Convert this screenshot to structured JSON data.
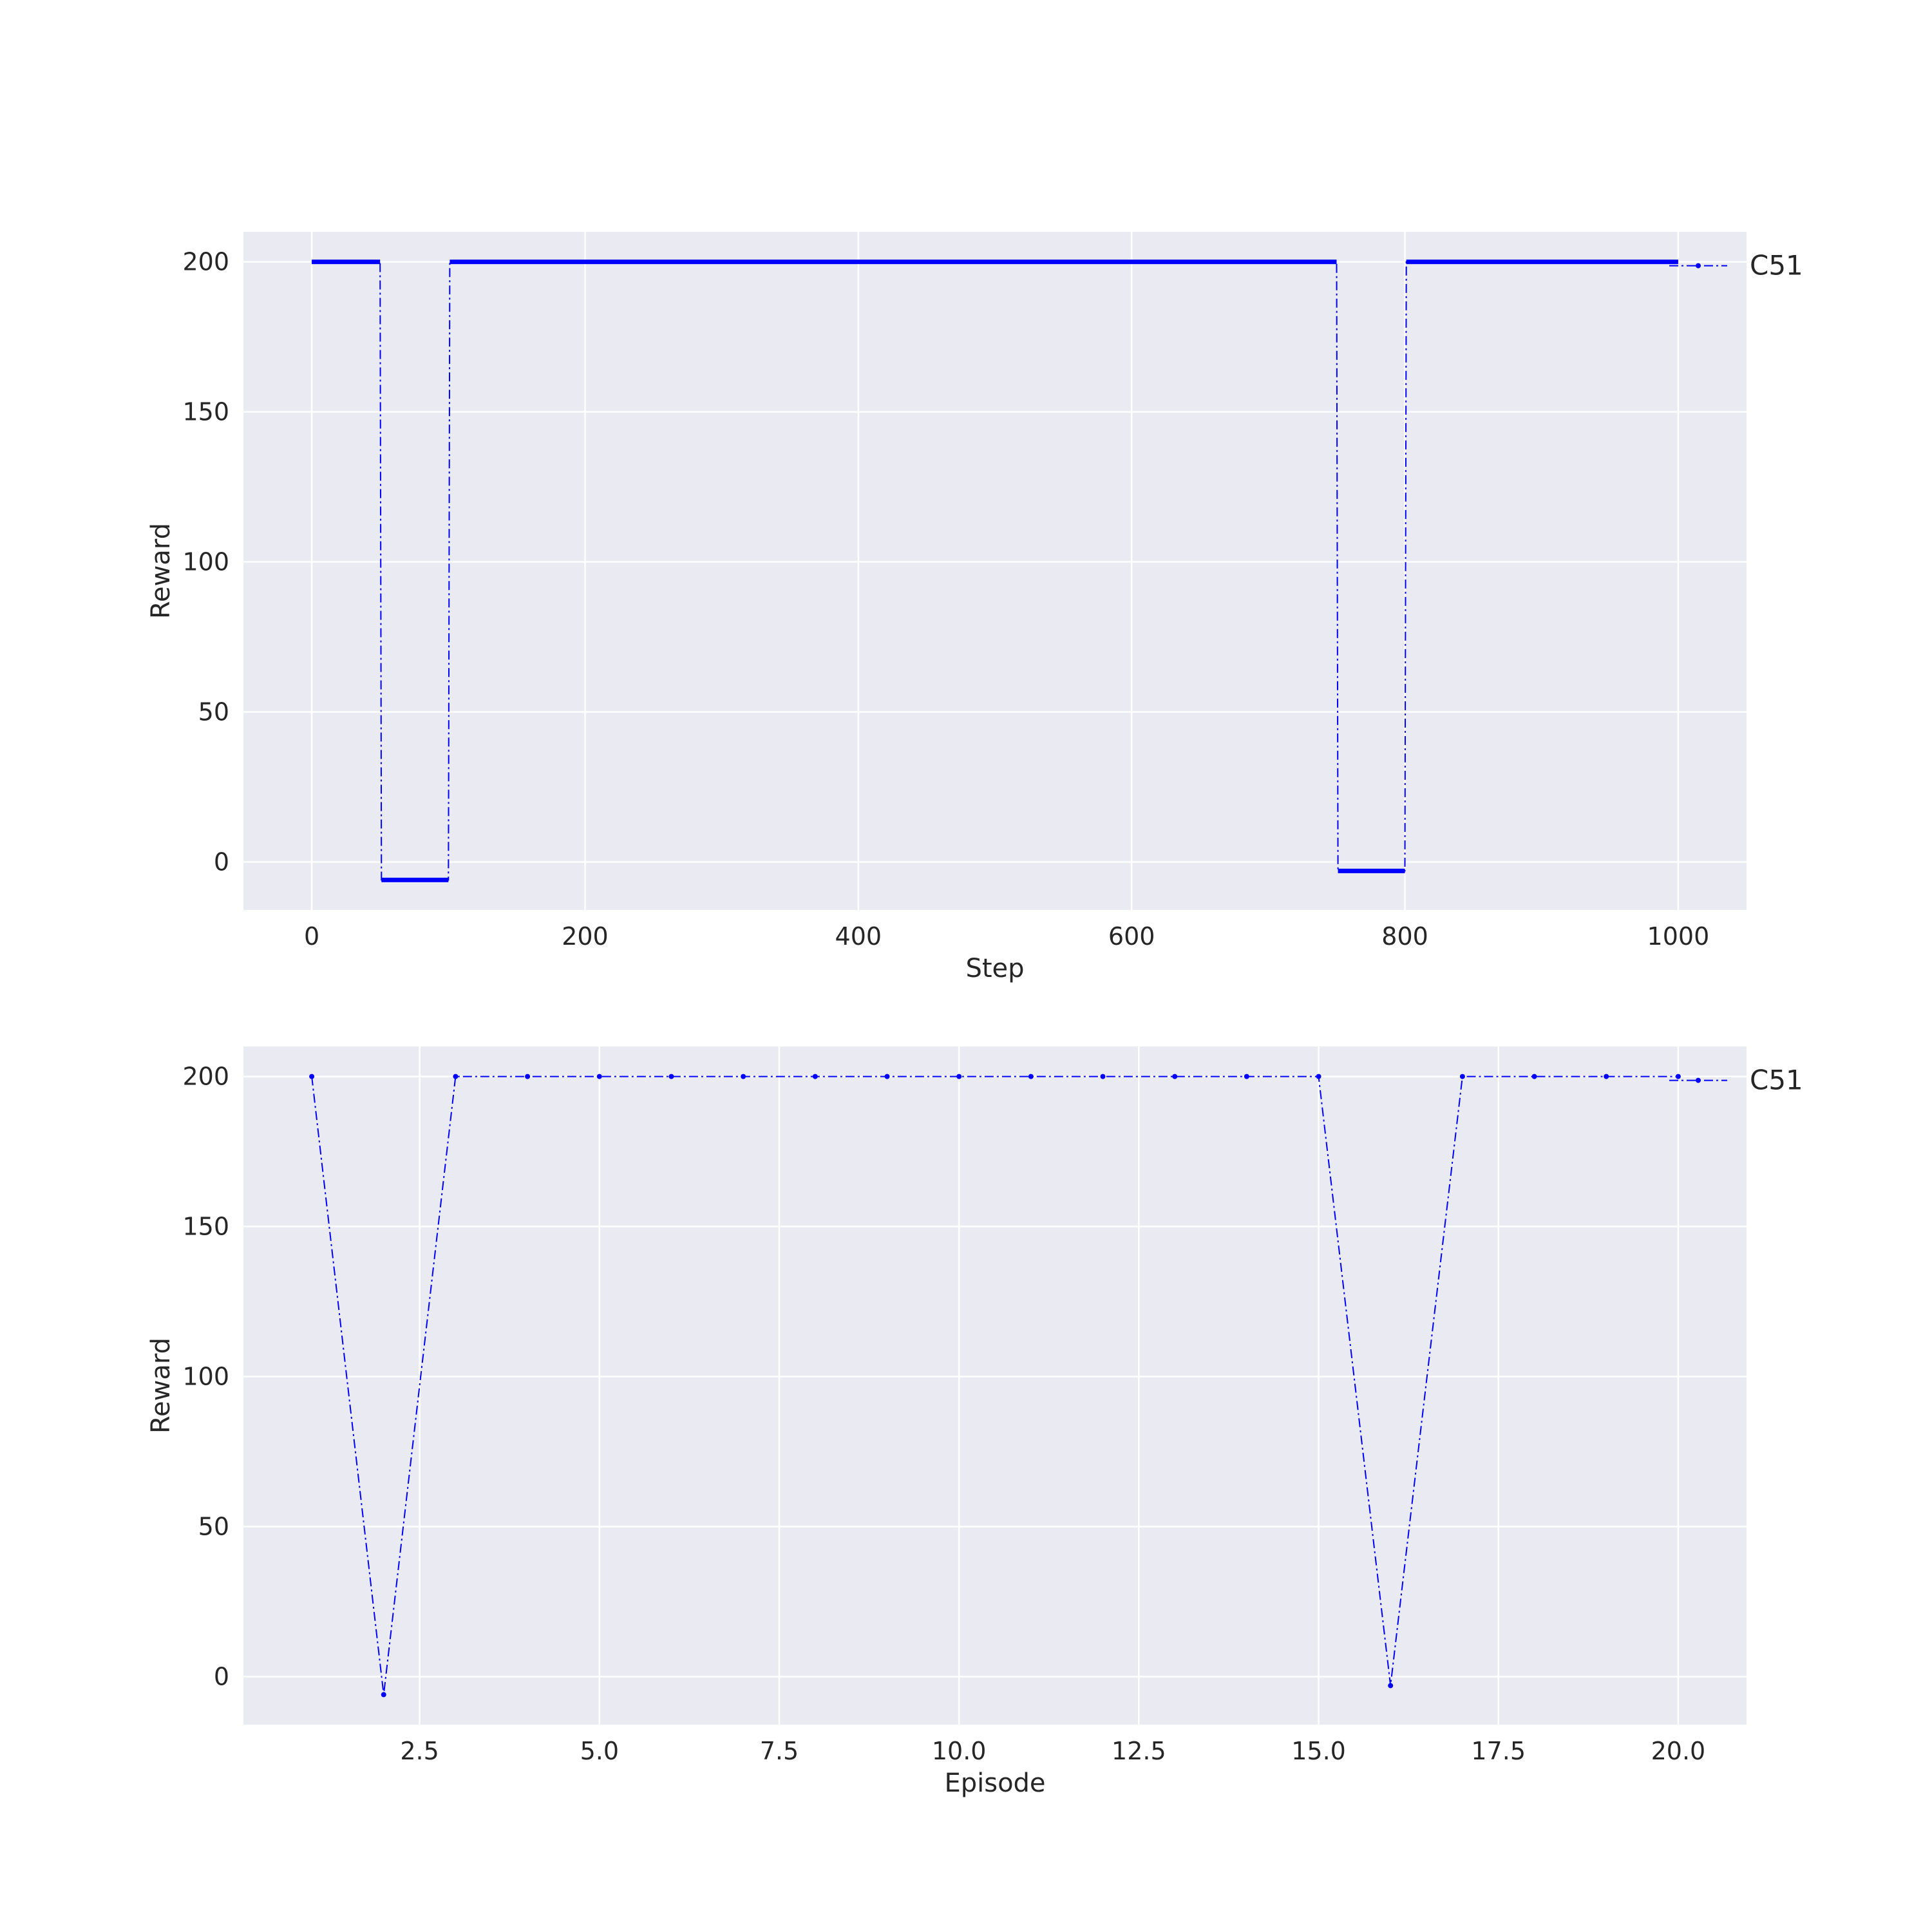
{
  "chart_data": [
    {
      "type": "line",
      "xlabel": "Step",
      "ylabel": "Reward",
      "xlim": [
        -50,
        1050
      ],
      "ylim": [
        -16,
        210
      ],
      "xticks": [
        "0",
        "200",
        "400",
        "600",
        "800",
        "1000"
      ],
      "yticks": [
        "0",
        "50",
        "100",
        "150",
        "200"
      ],
      "grid": true,
      "legend_position": "right",
      "series": [
        {
          "name": "C51",
          "color": "#0000ff",
          "line_style": "dash-dot",
          "marker": "dot",
          "segments": [
            {
              "x_start": 0,
              "x_end": 50,
              "y": 200
            },
            {
              "x_start": 51,
              "x_end": 100,
              "y": -6
            },
            {
              "x_start": 101,
              "x_end": 750,
              "y": 200
            },
            {
              "x_start": 751,
              "x_end": 800,
              "y": -3
            },
            {
              "x_start": 801,
              "x_end": 1000,
              "y": 200
            }
          ]
        }
      ]
    },
    {
      "type": "line",
      "xlabel": "Episode",
      "ylabel": "Reward",
      "xlim": [
        0.05,
        20.95
      ],
      "ylim": [
        -16,
        210
      ],
      "xticks": [
        "2.5",
        "5.0",
        "7.5",
        "10.0",
        "12.5",
        "15.0",
        "17.5",
        "20.0"
      ],
      "yticks": [
        "0",
        "50",
        "100",
        "150",
        "200"
      ],
      "grid": true,
      "legend_position": "right",
      "series": [
        {
          "name": "C51",
          "color": "#0000ff",
          "line_style": "dash-dot",
          "marker": "dot",
          "x": [
            1,
            2,
            3,
            4,
            5,
            6,
            7,
            8,
            9,
            10,
            11,
            12,
            13,
            14,
            15,
            16,
            17,
            18,
            19,
            20
          ],
          "y": [
            200,
            -6,
            200,
            200,
            200,
            200,
            200,
            200,
            200,
            200,
            200,
            200,
            200,
            200,
            200,
            -3,
            200,
            200,
            200,
            200
          ]
        }
      ]
    }
  ]
}
